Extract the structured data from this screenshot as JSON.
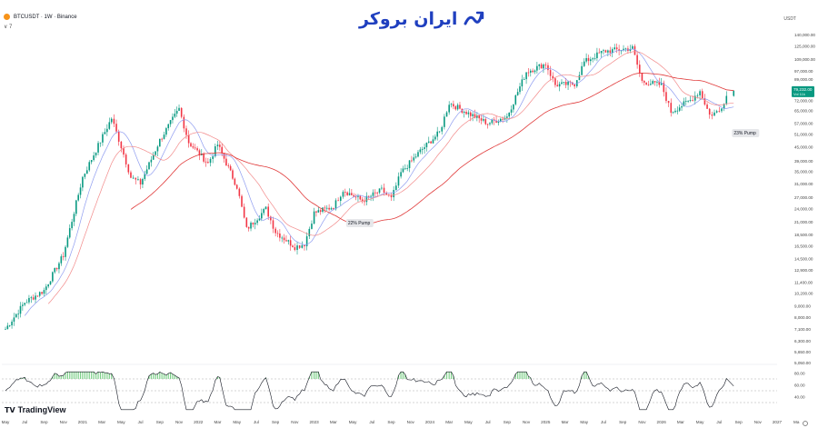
{
  "header": {
    "symbol": "BTCUSDT · 1W · Binance",
    "sub": "∨ 7",
    "currency": "USDT"
  },
  "logo": {
    "text": "ایران بروکر",
    "icon": "chart-trend-arrow-icon"
  },
  "branding": {
    "tradingview": "TradingView",
    "tradingview_icon": "tradingview-logo-icon"
  },
  "colors": {
    "up": "#089981",
    "down": "#f23645",
    "ma_red": "#e03a3a",
    "ma_pink": "#f28a8a",
    "ma_blue": "#8e9cf0",
    "rsi_line": "#131722",
    "rsi_fill": "#7ccf88",
    "price_badge": "#089981"
  },
  "chart_data": {
    "type": "candlestick",
    "ylim": [
      5100,
      140000
    ],
    "y_scale": "log",
    "x_range": [
      "2020-05",
      "2027-01"
    ],
    "price_ticks": [
      "140,000.00",
      "125,000.00",
      "109,000.00",
      "97,000.00",
      "89,000.00",
      "72,000.00",
      "65,000.00",
      "57,000.00",
      "51,000.00",
      "45,000.00",
      "39,000.00",
      "35,000.00",
      "31,000.00",
      "27,000.00",
      "24,000.00",
      "21,000.00",
      "18,500.00",
      "16,500.00",
      "14,500.00",
      "12,900.00",
      "11,400.00",
      "10,200.00",
      "9,000.00",
      "8,000.00",
      "7,100.00",
      "6,300.00",
      "5,650.00",
      "5,050.00"
    ],
    "time_ticks": [
      "May",
      "Jul",
      "Sep",
      "Nov",
      "2021",
      "Mar",
      "May",
      "Jul",
      "Sep",
      "Nov",
      "2022",
      "Mar",
      "May",
      "Jul",
      "Sep",
      "Nov",
      "2023",
      "Mar",
      "May",
      "Jul",
      "Sep",
      "Nov",
      "2024",
      "Mar",
      "May",
      "Jul",
      "Sep",
      "Nov",
      "2025",
      "Mar",
      "May",
      "Jul",
      "Sep",
      "Nov",
      "2026",
      "Mar",
      "May",
      "Jul",
      "Sep",
      "Nov",
      "2027",
      "Ma"
    ],
    "last_price": {
      "value": "79,232.00",
      "label": "Vol 11k"
    },
    "annotations": [
      {
        "text": "22% Pump",
        "date": "2023-03"
      },
      {
        "text": "23% Pump",
        "date": "2026-07"
      }
    ],
    "anchors": [
      [
        "2020-05",
        7100
      ],
      [
        "2020-07",
        9300
      ],
      [
        "2020-09",
        10500
      ],
      [
        "2020-11",
        15000
      ],
      [
        "2021-01",
        33000
      ],
      [
        "2021-04",
        60000
      ],
      [
        "2021-05",
        45000
      ],
      [
        "2021-06",
        33000
      ],
      [
        "2021-07",
        31000
      ],
      [
        "2021-09",
        48000
      ],
      [
        "2021-11",
        66000
      ],
      [
        "2021-12",
        47000
      ],
      [
        "2022-02",
        38000
      ],
      [
        "2022-03",
        46000
      ],
      [
        "2022-05",
        30000
      ],
      [
        "2022-06",
        19500
      ],
      [
        "2022-08",
        24000
      ],
      [
        "2022-09",
        19000
      ],
      [
        "2022-11",
        16300
      ],
      [
        "2022-12",
        16800
      ],
      [
        "2023-01",
        23000
      ],
      [
        "2023-03",
        24500
      ],
      [
        "2023-04",
        29000
      ],
      [
        "2023-06",
        26000
      ],
      [
        "2023-08",
        29000
      ],
      [
        "2023-09",
        26500
      ],
      [
        "2023-10",
        34500
      ],
      [
        "2023-12",
        43000
      ],
      [
        "2024-02",
        52000
      ],
      [
        "2024-03",
        70000
      ],
      [
        "2024-05",
        63000
      ],
      [
        "2024-07",
        57000
      ],
      [
        "2024-09",
        61000
      ],
      [
        "2024-11",
        96000
      ],
      [
        "2025-01",
        104000
      ],
      [
        "2025-02",
        84000
      ],
      [
        "2025-04",
        85000
      ],
      [
        "2025-05",
        106000
      ],
      [
        "2025-07",
        118000
      ],
      [
        "2025-10",
        122000
      ],
      [
        "2025-11",
        87000
      ],
      [
        "2026-01",
        84000
      ],
      [
        "2026-02",
        64000
      ],
      [
        "2026-04",
        72000
      ],
      [
        "2026-05",
        79000
      ],
      [
        "2026-06",
        62000
      ],
      [
        "2026-07",
        64500
      ],
      [
        "2026-08",
        79232
      ]
    ],
    "sma_long_start": "2021-06",
    "rsi": {
      "ticks": [
        "80.00",
        "60.00",
        "40.00"
      ],
      "levels": [
        70,
        50,
        30
      ],
      "last": 58
    }
  }
}
